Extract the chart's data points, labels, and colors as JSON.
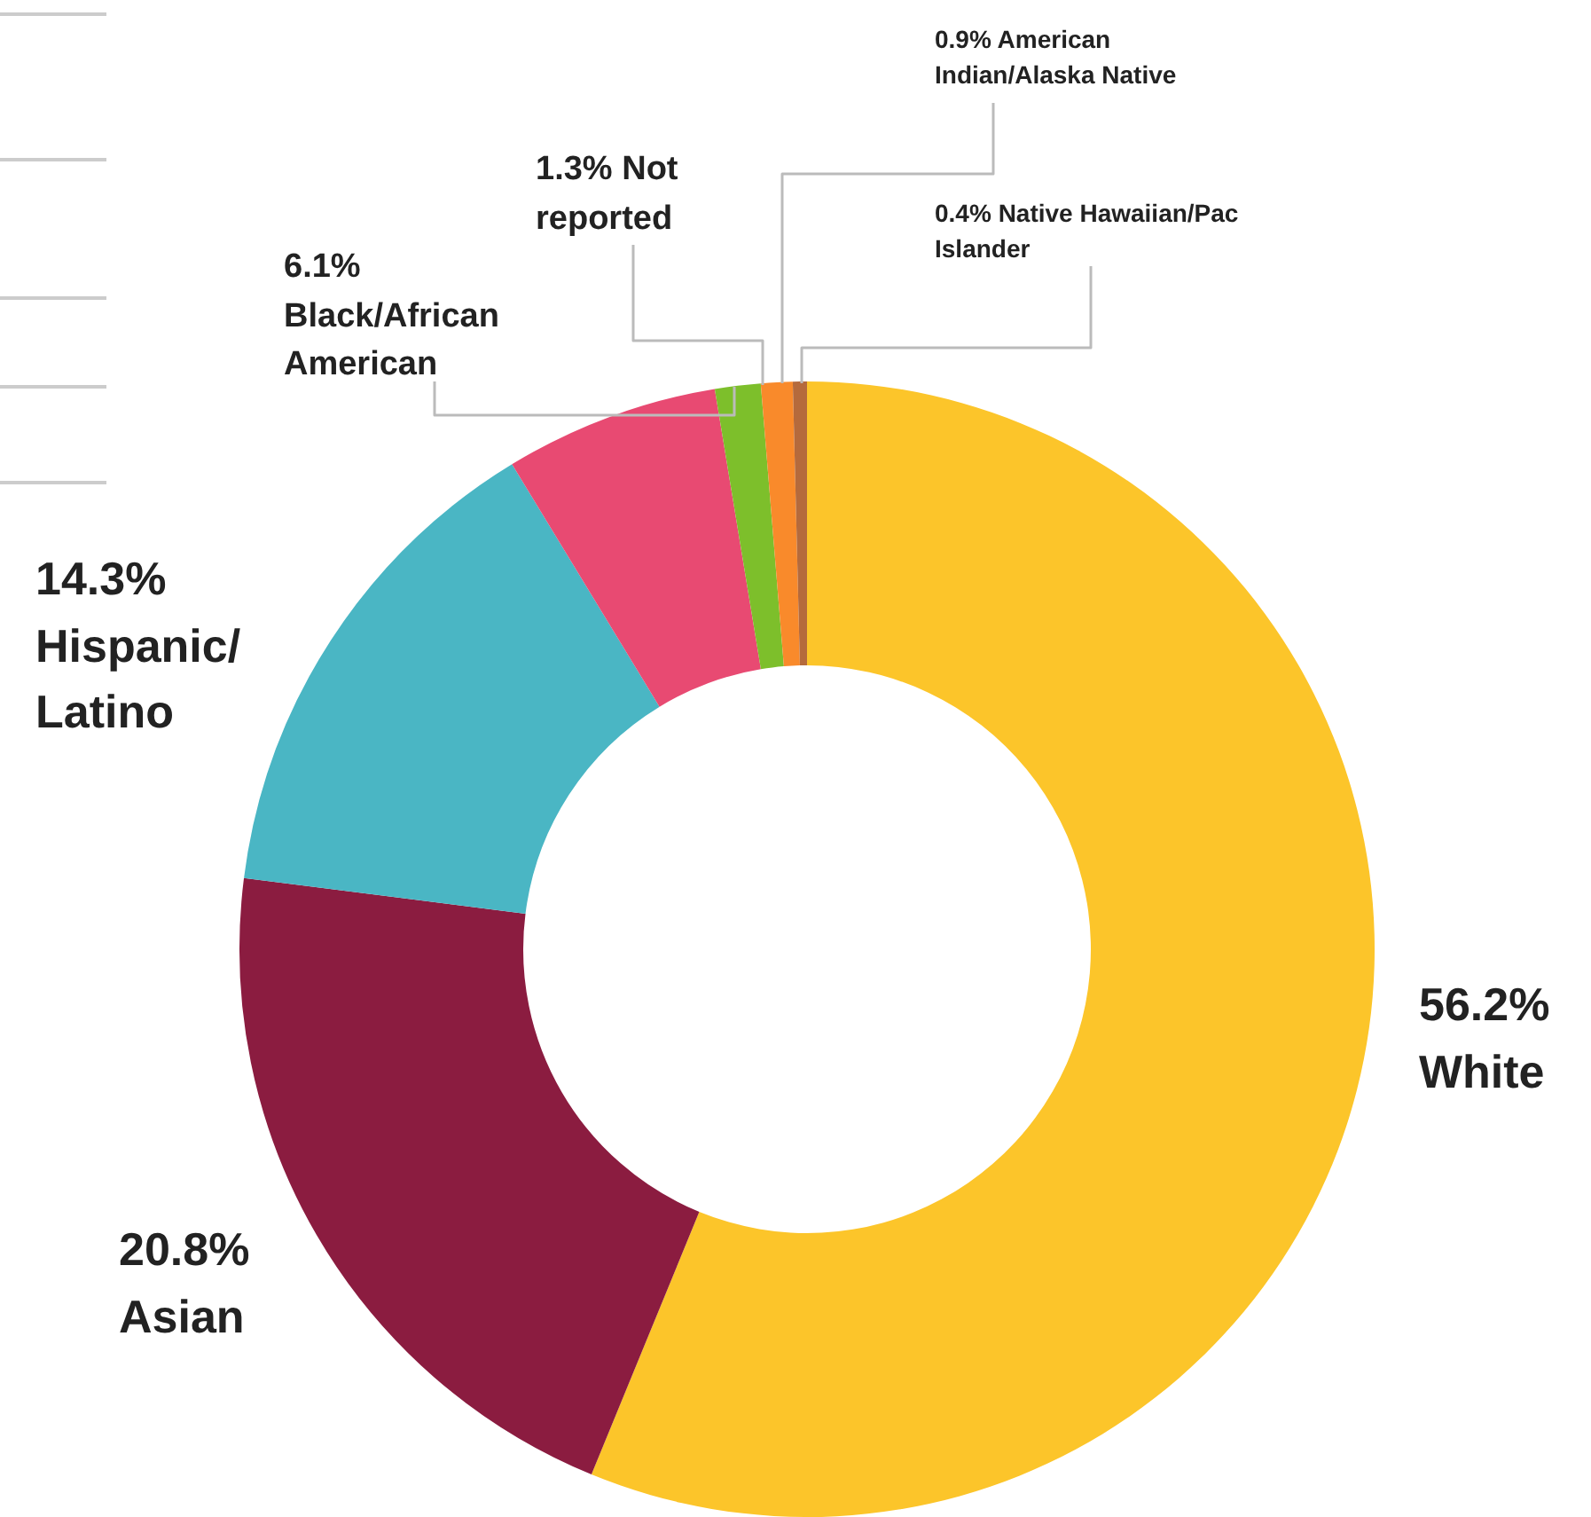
{
  "chart_data": {
    "type": "donut",
    "categories": [
      "White",
      "Asian",
      "Hispanic/Latino",
      "Black/African American",
      "Not reported",
      "American Indian/Alaska Native",
      "Native Hawaiian/Pac Islander"
    ],
    "values": [
      56.2,
      20.8,
      14.3,
      6.1,
      1.3,
      0.9,
      0.4
    ],
    "value_labels": [
      "56.2%",
      "20.8%",
      "14.3%",
      "6.1%",
      "1.3%",
      "0.9%",
      "0.4%"
    ],
    "colors": [
      "#fcc52a",
      "#8b1c40",
      "#4ab6c4",
      "#e84a72",
      "#7dbf2b",
      "#f98a2b",
      "#b56a3c"
    ],
    "legend": false
  }
}
